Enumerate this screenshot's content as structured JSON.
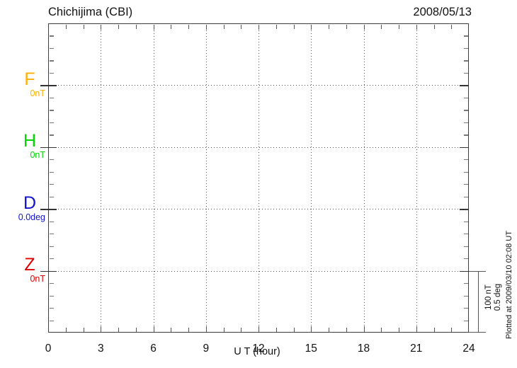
{
  "header": {
    "station": "Chichijima (CBI)",
    "date": "2008/05/13"
  },
  "channels": [
    {
      "id": "F",
      "label": "F",
      "value_label": "0nT",
      "color": "#FFAE00"
    },
    {
      "id": "H",
      "label": "H",
      "value_label": "0nT",
      "color": "#00D500"
    },
    {
      "id": "D",
      "label": "D",
      "value_label": "0.0deg",
      "color": "#1212CE"
    },
    {
      "id": "Z",
      "label": "Z",
      "value_label": "0nT",
      "color": "#DE0000"
    }
  ],
  "x_axis": {
    "label": "U T (hour)",
    "ticks": [
      "0",
      "3",
      "6",
      "9",
      "12",
      "15",
      "18",
      "21",
      "24"
    ]
  },
  "scale_bar": {
    "line1": "100 nT",
    "line2": "0.5 deg"
  },
  "footer_note": "Plotted at 2009/03/10 02:08 UT",
  "colors": {
    "axis": "#3d3d3d",
    "grid_dots": "#4f4f4f",
    "text": "#111111"
  },
  "chart_data": {
    "type": "line",
    "title": "Chichijima (CBI)",
    "subtitle": "2008/05/13",
    "xlabel": "U T (hour)",
    "ylabel": "",
    "xlim": [
      0,
      24
    ],
    "x_major_ticks": [
      0,
      3,
      6,
      9,
      12,
      15,
      18,
      21,
      24
    ],
    "x_minor_tick_step_hours": 1,
    "grid": "dotted vertical lines every 3 hours; dotted horizontal line at each channel baseline",
    "legend_position": "left margin, one colored label per channel",
    "scale_reference": {
      "per_division_nT": 100,
      "per_division_deg": 0.5,
      "minor_tick_nT": 20
    },
    "series": [
      {
        "name": "F",
        "unit": "nT",
        "baseline_value": 0,
        "color": "#FFAE00",
        "values": []
      },
      {
        "name": "H",
        "unit": "nT",
        "baseline_value": 0,
        "color": "#00D500",
        "values": []
      },
      {
        "name": "D",
        "unit": "deg",
        "baseline_value": 0.0,
        "color": "#1212CE",
        "values": []
      },
      {
        "name": "Z",
        "unit": "nT",
        "baseline_value": 0,
        "color": "#DE0000",
        "values": []
      }
    ],
    "note": "No data traces plotted (empty magnetogram); only baselines shown",
    "plotted_at": "2009/03/10 02:08 UT"
  }
}
